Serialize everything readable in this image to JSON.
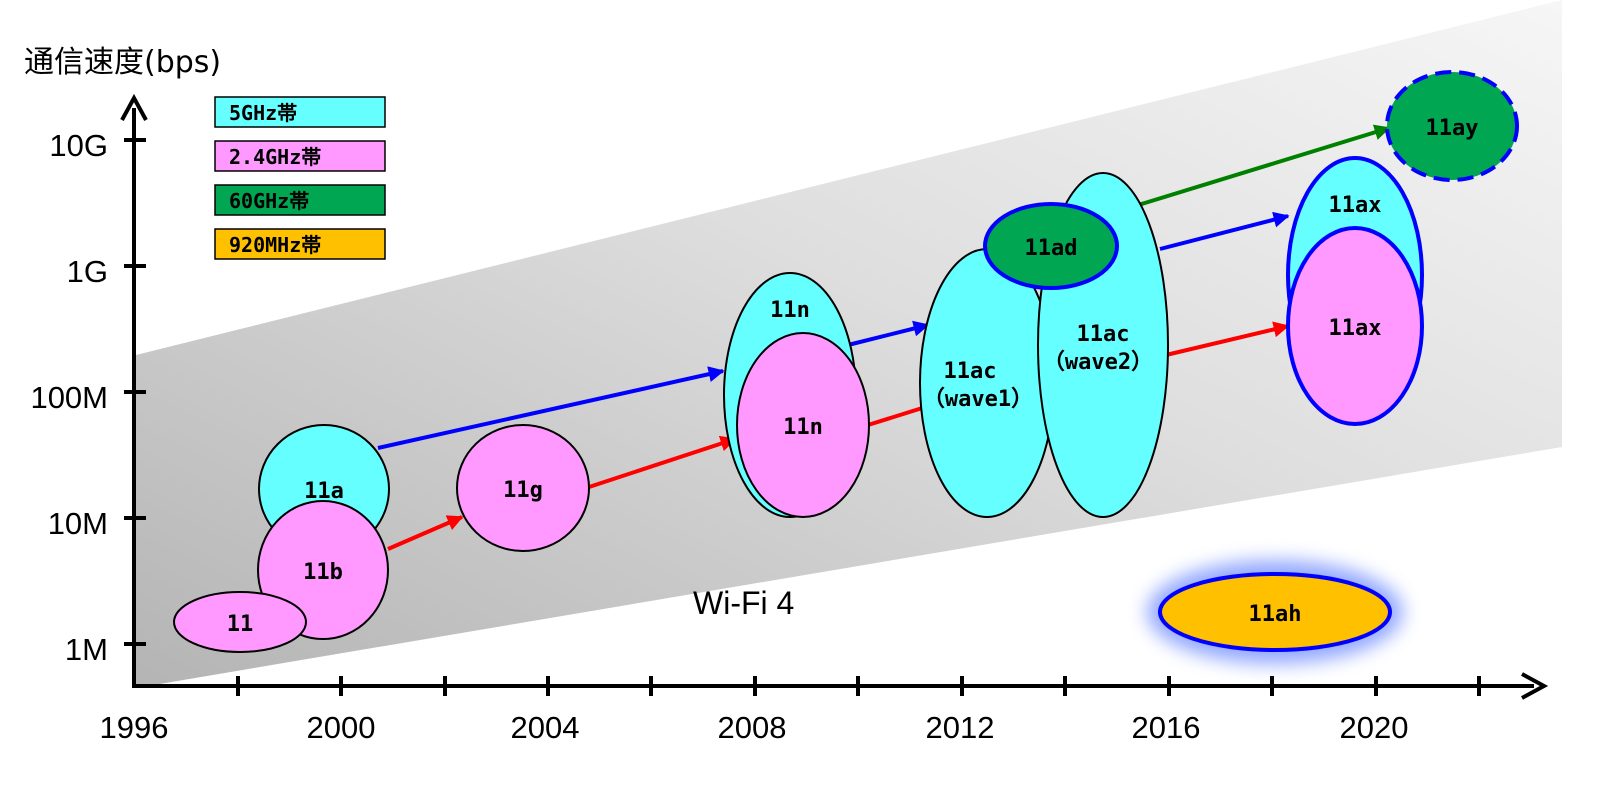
{
  "y_axis_title": "通信速度(bps)",
  "y_ticks": [
    {
      "label": "10G",
      "bps_log10": 10
    },
    {
      "label": "1G",
      "bps_log10": 9
    },
    {
      "label": "100M",
      "bps_log10": 8
    },
    {
      "label": "10M",
      "bps_log10": 7
    },
    {
      "label": "1M",
      "bps_log10": 6
    }
  ],
  "x_ticks": [
    "1996",
    "2000",
    "2004",
    "2008",
    "2012",
    "2016",
    "2020"
  ],
  "legend": [
    {
      "label": "5GHz帯",
      "color": "#66ffff"
    },
    {
      "label": "2.4GHz帯",
      "color": "#ff99ff"
    },
    {
      "label": "60GHz帯",
      "color": "#00a651"
    },
    {
      "label": "920MHz帯",
      "color": "#ffc000"
    }
  ],
  "band_colors": {
    "5GHz": "#66ffff",
    "2.4GHz": "#ff99ff",
    "60GHz": "#00a651",
    "920MHz": "#ffc000"
  },
  "arrow_colors": {
    "red": "#ff0000",
    "blue": "#0000ff",
    "green": "#008000"
  },
  "standards": {
    "s11": "11",
    "s11a": "11a",
    "s11b": "11b",
    "s11g": "11g",
    "s11n_5": "11n",
    "s11n_24": "11n",
    "s11ac_w1": "11ac",
    "s11ac_w1_sub": "（wave1）",
    "s11ac_w2": "11ac",
    "s11ac_w2_sub": "（wave2）",
    "s11ad": "11ad",
    "s11ax_5": "11ax",
    "s11ax_24": "11ax",
    "s11ay": "11ay",
    "s11ah": "11ah"
  },
  "wifi4_label": "Wi-Fi 4"
}
